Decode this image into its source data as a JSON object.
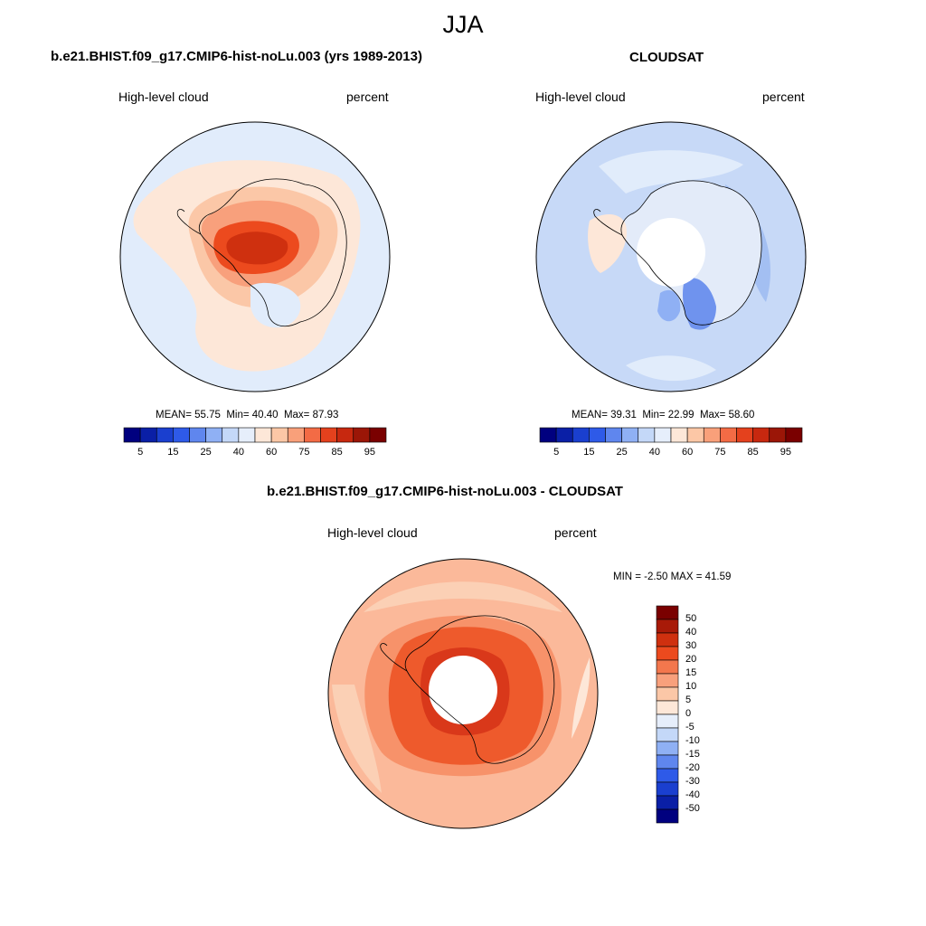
{
  "figure": {
    "season": "JJA"
  },
  "panels": [
    {
      "title": "b.e21.BHIST.f09_g17.CMIP6-hist-noLu.003 (yrs 1989-2013)",
      "left_label": "High-level cloud",
      "right_label": "percent",
      "stats": {
        "mean_label": "MEAN=",
        "mean": "55.75",
        "min_label": "Min=",
        "min": "40.40",
        "max_label": "Max=",
        "max": "87.93"
      }
    },
    {
      "title": "CLOUDSAT",
      "left_label": "High-level cloud",
      "right_label": "percent",
      "stats": {
        "mean_label": "MEAN=",
        "mean": "39.31",
        "min_label": "Min=",
        "min": "22.99",
        "max_label": "Max=",
        "max": "58.60"
      }
    },
    {
      "title": "b.e21.BHIST.f09_g17.CMIP6-hist-noLu.003 - CLOUDSAT",
      "left_label": "High-level cloud",
      "right_label": "percent",
      "stats": {
        "text": "MIN =  -2.50 MAX =  41.59"
      }
    }
  ],
  "colorbars": {
    "horizontal": {
      "ticks": [
        "5",
        "15",
        "25",
        "40",
        "60",
        "75",
        "85",
        "95"
      ],
      "colors": [
        "#00007f",
        "#0a1fa6",
        "#1a3fcf",
        "#2e5ae8",
        "#5f86ee",
        "#8fb0f4",
        "#c4d8f8",
        "#e6eefb",
        "#fde7d8",
        "#fcc7a6",
        "#f9a07a",
        "#f36b45",
        "#e4411d",
        "#c7280f",
        "#9b1607",
        "#7a0000"
      ]
    },
    "vertical": {
      "ticks": [
        "50",
        "40",
        "30",
        "20",
        "15",
        "10",
        "5",
        "0",
        "-5",
        "-10",
        "-15",
        "-20",
        "-30",
        "-40",
        "-50"
      ],
      "colors": [
        "#7a0000",
        "#a81a08",
        "#cf300f",
        "#ec4a1e",
        "#f3774d",
        "#f8a07c",
        "#fbc7a7",
        "#fde7d8",
        "#e6eefb",
        "#c4d8f8",
        "#8fb0f4",
        "#5f86ee",
        "#2e5ae8",
        "#1a3fcf",
        "#0a1fa6",
        "#00007f"
      ]
    }
  },
  "maps": [
    {
      "projection": "south-polar-stereographic",
      "ocean_fill": "#e1ecfb",
      "field": "model high-level cloud"
    },
    {
      "projection": "south-polar-stereographic",
      "ocean_fill": "#c7d9f7",
      "field": "CloudSat high-level cloud"
    },
    {
      "projection": "south-polar-stereographic",
      "ocean_fill": "#fbb99a",
      "field": "model minus CloudSat difference"
    }
  ]
}
